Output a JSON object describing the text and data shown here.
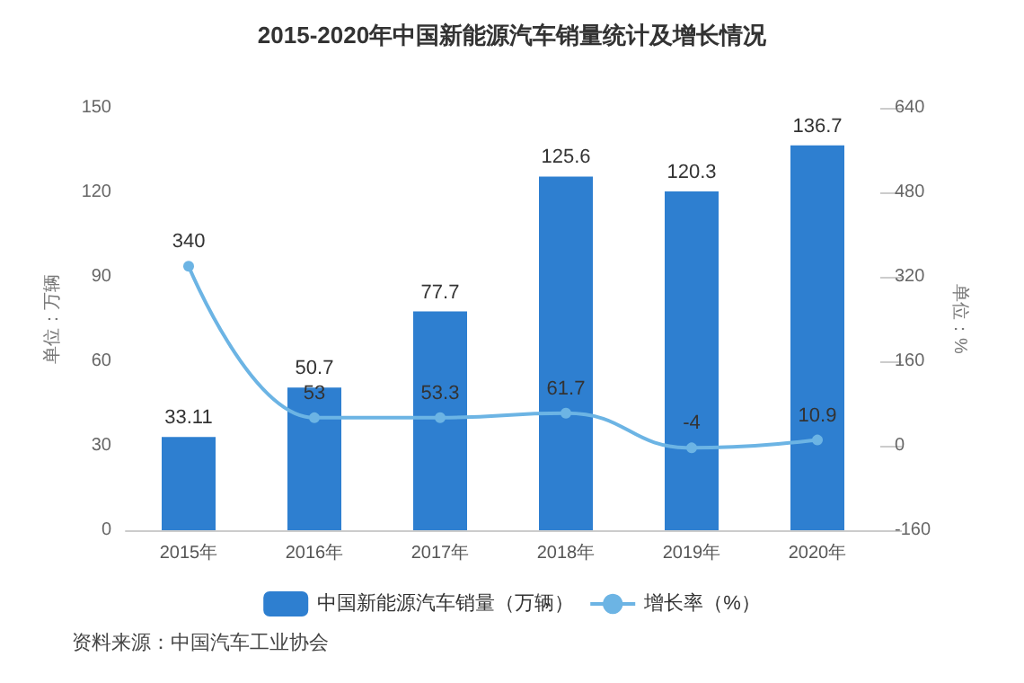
{
  "chart_data": {
    "type": "bar",
    "title": "2015-2020年中国新能源汽车销量统计及增长情况",
    "categories": [
      "2015年",
      "2016年",
      "2017年",
      "2018年",
      "2019年",
      "2020年"
    ],
    "series": [
      {
        "name": "中国新能源汽车销量（万辆）",
        "color": "#2e7fd0",
        "values": [
          33.11,
          50.7,
          77.7,
          125.6,
          120.3,
          136.7
        ]
      },
      {
        "name": "增长率（%）",
        "type": "line",
        "axis": "y2",
        "color": "#6cb4e4",
        "values": [
          340,
          53,
          53.3,
          61.7,
          -4,
          10.9
        ]
      }
    ],
    "ylabel": "单位：万辆",
    "y2label": "单位：%",
    "ylim": [
      0,
      150
    ],
    "yticks": [
      0,
      30,
      60,
      90,
      120,
      150
    ],
    "y2lim": [
      -160,
      640
    ],
    "y2ticks": [
      -160,
      0,
      160,
      320,
      480,
      640
    ],
    "data_labels": true,
    "legend": "bottom",
    "marker": "circle",
    "line_style": "solid",
    "annotations": [
      "资料来源：中国汽车工业协会"
    ]
  }
}
